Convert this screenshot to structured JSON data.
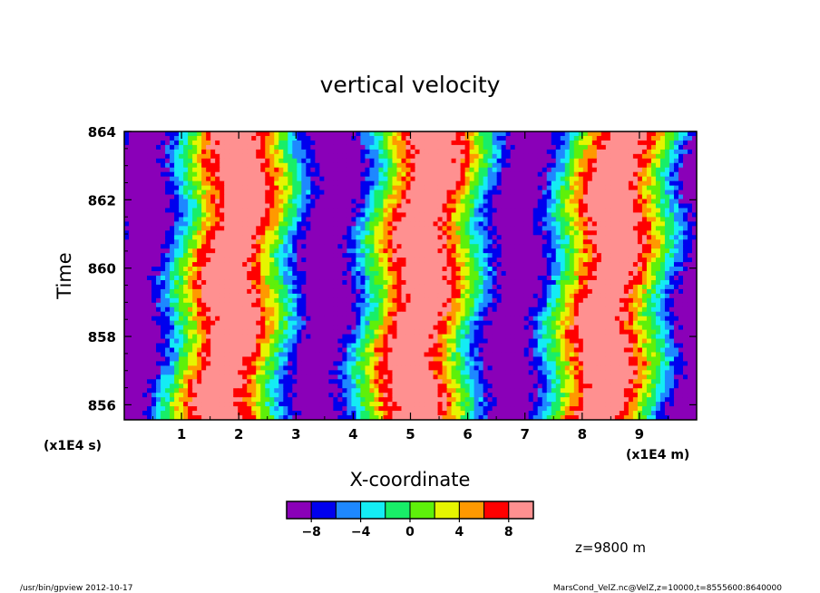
{
  "chart_data": {
    "type": "heatmap",
    "title": "vertical velocity",
    "xlabel": "X-coordinate",
    "ylabel": "Time",
    "x_unit": "(x1E4 m)",
    "y_unit": "(x1E4 s)",
    "xlim": [
      0,
      10
    ],
    "ylim": [
      855.56,
      864
    ],
    "x_ticks": [
      1,
      2,
      3,
      4,
      5,
      6,
      7,
      8,
      9
    ],
    "x_tick_labels": [
      "1",
      "2",
      "3",
      "4",
      "5",
      "6",
      "7",
      "8",
      "9"
    ],
    "y_ticks": [
      856,
      858,
      860,
      862,
      864
    ],
    "y_tick_labels": [
      "856",
      "858",
      "860",
      "862",
      "864"
    ],
    "pattern": {
      "description_values": "quasi-periodic banded field along x, bands drift slowly with time",
      "wavelength_x": 3.3,
      "amplitude": 11,
      "maxima_x_at_time_864": [
        1.7,
        5.1,
        8.4
      ],
      "maxima_x_at_time_856": [
        2.0,
        5.3,
        8.8
      ],
      "minima_x_at_time_864": [
        0.1,
        3.4,
        6.8
      ],
      "minima_x_at_time_856": [
        0.4,
        3.6,
        6.9
      ]
    },
    "colorbar": {
      "levels": [
        -10,
        -8,
        -6,
        -4,
        -2,
        0,
        2,
        4,
        6,
        8,
        10
      ],
      "colors": [
        "#8a00b8",
        "#0000ee",
        "#1e88ff",
        "#14ecf4",
        "#18ee68",
        "#5ef00a",
        "#e6f500",
        "#ff9900",
        "#ff0000",
        "#ff9090"
      ],
      "tick_values": [
        -8,
        -4,
        0,
        4,
        8
      ],
      "tick_labels": [
        "−8",
        "−4",
        "0",
        "4",
        "8"
      ]
    },
    "annotation": "z=9800 m"
  },
  "footer": {
    "left": "/usr/bin/gpview   2012-10-17",
    "right": "MarsCond_VelZ.nc@VelZ,z=10000,t=8555600:8640000"
  }
}
